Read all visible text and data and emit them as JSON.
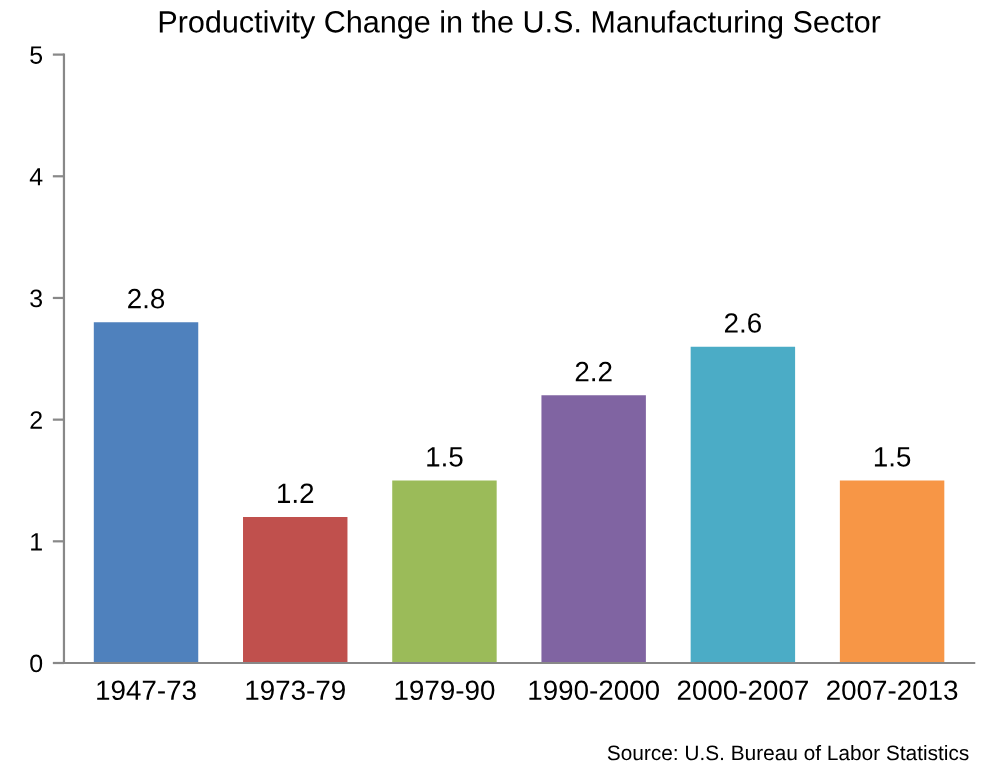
{
  "chart_data": {
    "type": "bar",
    "title": "Productivity Change in the U.S. Manufacturing Sector",
    "categories": [
      "1947-73",
      "1973-79",
      "1979-90",
      "1990-2000",
      "2000-2007",
      "2007-2013"
    ],
    "values": [
      2.8,
      1.2,
      1.5,
      2.2,
      2.6,
      1.5
    ],
    "colors": [
      "#4f81bd",
      "#c0504d",
      "#9bbb59",
      "#8064a2",
      "#4bacc6",
      "#f79646"
    ],
    "data_labels": true,
    "ylim": [
      0,
      5
    ],
    "yticks": [
      0,
      1,
      2,
      3,
      4,
      5
    ],
    "grid": false,
    "annotations": [
      "Source: U.S. Bureau of Labor Statistics"
    ]
  }
}
